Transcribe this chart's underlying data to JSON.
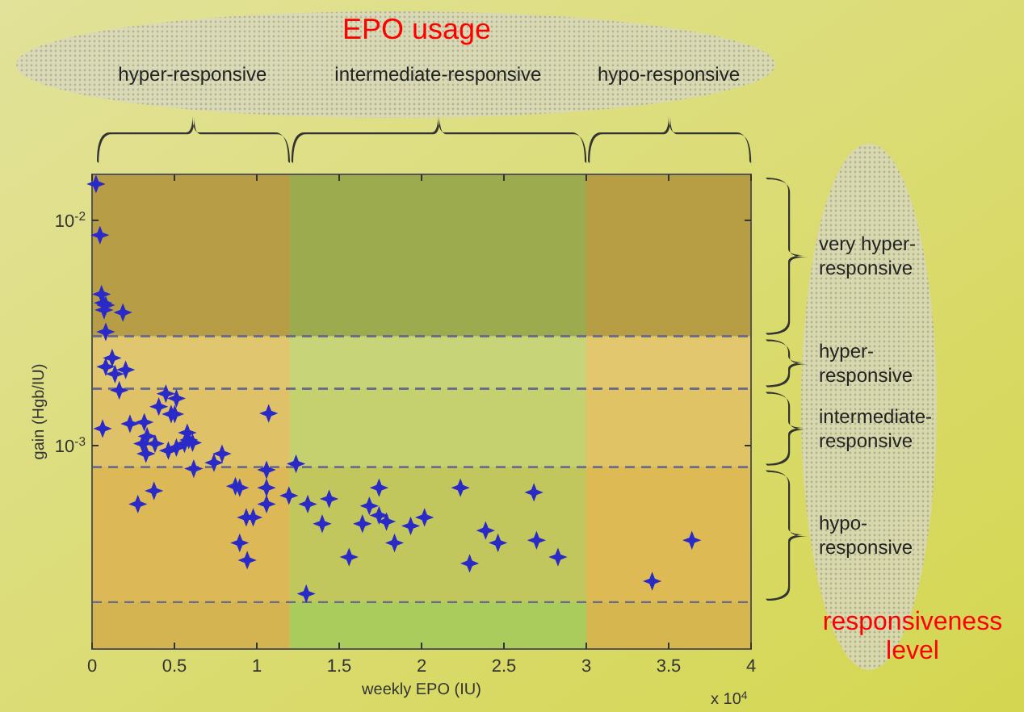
{
  "chart_data": {
    "type": "scatter",
    "title": "EPO usage",
    "xlabel": "weekly EPO (IU)",
    "ylabel": "gain (Hgb/IU)",
    "log": "y",
    "xlim": [
      0,
      4
    ],
    "xticks": [
      0,
      0.5,
      1,
      1.5,
      2,
      2.5,
      3,
      3.5,
      4
    ],
    "ylim": [
      0.000125,
      0.016
    ],
    "yticks": [
      {
        "value": 0.001,
        "label": "10$^{-3}$"
      },
      {
        "value": 0.01,
        "label": "10$^{-2}$"
      }
    ],
    "grid": false,
    "marker": "star",
    "bands": [
      {
        "axis": "x",
        "from": 0,
        "to": 1.2,
        "color": "#d4b450"
      },
      {
        "axis": "x",
        "from": 1.2,
        "to": 3,
        "color": "#a9cc5c"
      },
      {
        "axis": "x",
        "from": 3,
        "to": 4,
        "color": "#d6b64e"
      },
      {
        "axis": "y",
        "from": 0.00306,
        "to": 0.016,
        "color": "#8a7a38"
      },
      {
        "axis": "y",
        "from": 0.00179,
        "to": 0.00306,
        "color": "#f4e0a0"
      },
      {
        "axis": "y",
        "from": 0.000803,
        "to": 0.00179,
        "color": "#efd68a"
      },
      {
        "axis": "y",
        "from": 0.000202,
        "to": 0.000803,
        "color": "#e8c060"
      }
    ],
    "annotations": [
      "responsiveness level",
      "x 10$^{4}$",
      "hyper-responsive",
      "intermediate-responsive",
      "hypo-responsive",
      "very hyper-responsive",
      "hyper-responsive",
      "intermediate-responsive",
      "hypo-responsive"
    ],
    "series": [
      {
        "color": "#2a2ac8",
        "x": [
          0.024,
          0.048,
          0.0575,
          0.067,
          0.083,
          0.073,
          0.187,
          0.083,
          0.122,
          0.083,
          0.139,
          0.204,
          0.165,
          0.064,
          0.23,
          0.317,
          0.405,
          0.448,
          0.512,
          0.48,
          0.502,
          0.334,
          0.307,
          0.382,
          0.327,
          0.463,
          0.512,
          0.578,
          0.587,
          0.61,
          0.561,
          0.617,
          0.74,
          0.789,
          1.072,
          1.059,
          0.278,
          0.376,
          0.87,
          0.896,
          1.059,
          1.195,
          1.059,
          0.936,
          0.978,
          0.896,
          0.942,
          1.238,
          1.309,
          1.397,
          1.3,
          1.439,
          1.742,
          1.683,
          1.641,
          1.742,
          1.787,
          1.836,
          1.56,
          1.934,
          2.018,
          2.236,
          2.389,
          2.464,
          2.292,
          2.682,
          2.698,
          2.828,
          3.4,
          3.641
        ],
        "values": [
          0.0145,
          0.0086,
          0.0047,
          0.0043,
          0.0042,
          0.004,
          0.0039,
          0.0032,
          0.00245,
          0.00224,
          0.00208,
          0.00217,
          0.00176,
          0.00119,
          0.00125,
          0.00127,
          0.00149,
          0.0017,
          0.00162,
          0.00138,
          0.00138,
          0.0011,
          0.00102,
          0.00102,
          0.00092,
          0.00095,
          0.00098,
          0.00114,
          0.00106,
          0.00103,
          0.00102,
          0.00079,
          0.00084,
          0.00092,
          0.00139,
          0.00078,
          0.00055,
          0.00063,
          0.00066,
          0.00065,
          0.00065,
          0.0006,
          0.00055,
          0.00048,
          0.00048,
          0.00037,
          0.00031,
          0.00083,
          0.00055,
          0.00045,
          0.00022,
          0.00058,
          0.00065,
          0.00054,
          0.00045,
          0.00049,
          0.00046,
          0.00037,
          0.00032,
          0.00044,
          0.00048,
          0.00065,
          0.00042,
          0.00037,
          0.0003,
          0.00062,
          0.00038,
          0.00032,
          0.00025,
          0.00038
        ]
      }
    ]
  }
}
